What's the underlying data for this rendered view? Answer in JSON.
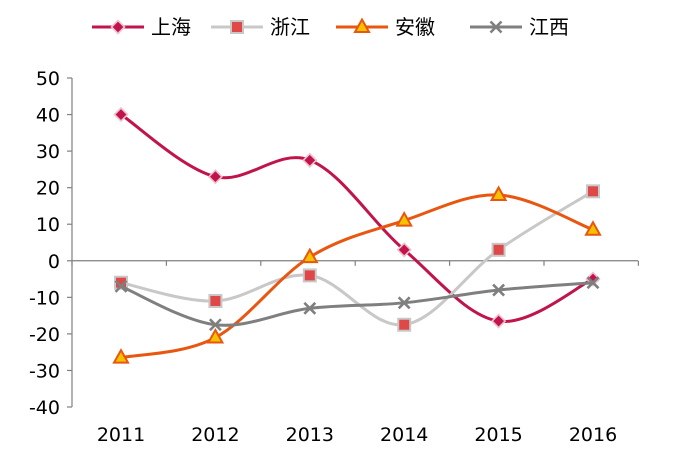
{
  "chart_data": {
    "type": "line",
    "title": "",
    "xlabel": "",
    "ylabel": "",
    "categories": [
      "2011",
      "2012",
      "2013",
      "2014",
      "2015",
      "2016"
    ],
    "ylim": [
      -40,
      50
    ],
    "yticks": [
      "50",
      "40",
      "30",
      "20",
      "10",
      "0",
      "-10",
      "-20",
      "-30",
      "-40"
    ],
    "grid": false,
    "legend_position": "top",
    "series": [
      {
        "name": "上海",
        "values": [
          40,
          23,
          27.5,
          3,
          -16.5,
          -5
        ],
        "color": "#c0144a",
        "marker": "diamond"
      },
      {
        "name": "浙江",
        "values": [
          -6,
          -11,
          -4,
          -17.5,
          3,
          19
        ],
        "color": "#c8c8c8",
        "marker": "square",
        "marker_fill": "#e04848"
      },
      {
        "name": "安徽",
        "values": [
          -26.5,
          -21,
          1,
          11,
          18,
          8.5
        ],
        "color": "#e8560f",
        "marker": "triangle",
        "marker_fill": "#f5c200"
      },
      {
        "name": "江西",
        "values": [
          -7,
          -17.5,
          -13,
          -11.5,
          -8,
          -6
        ],
        "color": "#7f7f7f",
        "marker": "x"
      }
    ]
  }
}
